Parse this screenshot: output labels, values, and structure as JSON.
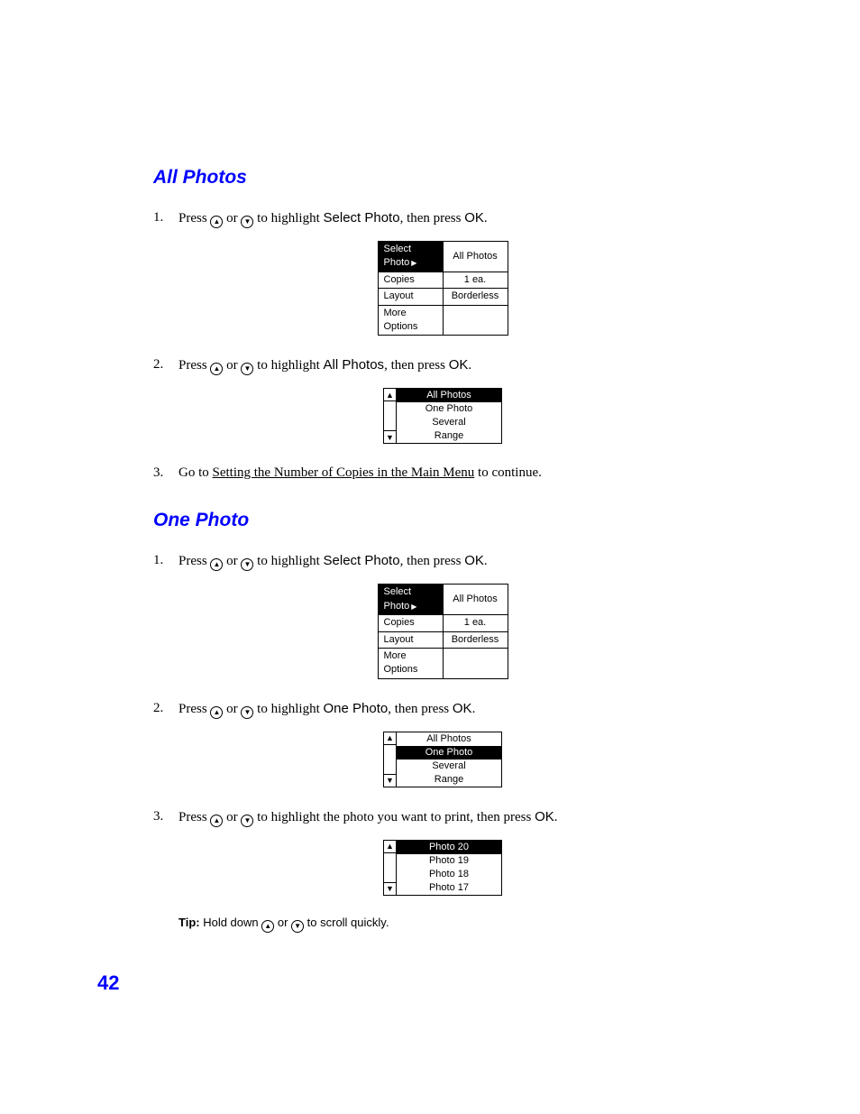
{
  "colors": {
    "accent": "#0000ff",
    "text": "#000000",
    "bg": "#ffffff"
  },
  "page_number": "42",
  "sections": {
    "all_photos": {
      "title": "All Photos",
      "steps": {
        "s1": {
          "num": "1.",
          "pre": "Press ",
          "mid": " or ",
          "post": " to highlight ",
          "bold1": "Select Photo",
          "then": ", then press ",
          "bold2": "OK",
          "end": "."
        },
        "s2": {
          "num": "2.",
          "pre": "Press ",
          "mid": " or ",
          "post": " to highlight ",
          "bold1": "All Photos",
          "then": ", then press ",
          "bold2": "OK",
          "end": "."
        },
        "s3": {
          "num": "3.",
          "pre": "Go to ",
          "link": "Setting the Number of Copies in the Main Menu",
          "post": " to continue."
        }
      },
      "lcd_menu": {
        "rows": [
          {
            "l": "Select Photo",
            "r": "All Photos",
            "sel": true
          },
          {
            "l": "Copies",
            "r": "1 ea."
          },
          {
            "l": "Layout",
            "r": "Borderless"
          },
          {
            "l": "More Options",
            "r": ""
          }
        ]
      },
      "lcd_list": {
        "items": [
          "All Photos",
          "One Photo",
          "Several",
          "Range"
        ],
        "selected_index": 0
      }
    },
    "one_photo": {
      "title": "One Photo",
      "label_up": "▲",
      "label_down": "▼",
      "steps": {
        "s1": {
          "num": "1.",
          "pre": "Press ",
          "mid": " or ",
          "post": " to highlight ",
          "bold1": "Select Photo",
          "then": ", then press ",
          "bold2": "OK",
          "end": "."
        },
        "s2": {
          "num": "2.",
          "pre": "Press ",
          "mid": " or ",
          "post": " to highlight ",
          "bold1": "One Photo",
          "then": ", then press ",
          "bold2": "OK",
          "end": "."
        },
        "s3": {
          "num": "3.",
          "pre": "Press ",
          "mid": " or ",
          "post": " to highlight the photo you want to print, then press ",
          "bold2": "OK",
          "end": "."
        }
      },
      "lcd_menu": {
        "rows": [
          {
            "l": "Select Photo",
            "r": "All Photos",
            "sel": true
          },
          {
            "l": "Copies",
            "r": "1 ea."
          },
          {
            "l": "Layout",
            "r": "Borderless"
          },
          {
            "l": "More Options",
            "r": ""
          }
        ]
      },
      "lcd_list1": {
        "items": [
          "All Photos",
          "One Photo",
          "Several",
          "Range"
        ],
        "selected_index": 1
      },
      "lcd_list2": {
        "items": [
          "Photo 20",
          "Photo 19",
          "Photo 18",
          "Photo 17"
        ],
        "selected_index": 0
      },
      "tip": {
        "label": "Tip:",
        "pre": " Hold down ",
        "mid": " or ",
        "post": " to scroll quickly."
      }
    }
  }
}
